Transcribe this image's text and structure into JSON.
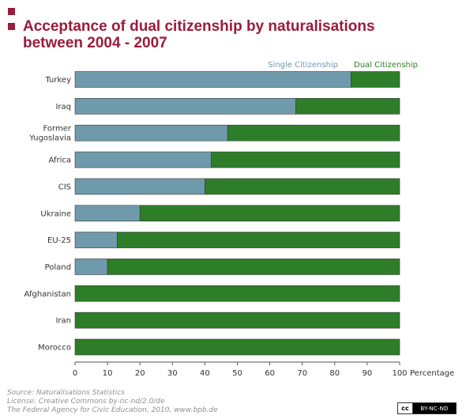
{
  "header": {
    "title_line1": "Acceptance of dual citizenship by naturalisations",
    "title_line2": "between 2004 - 2007"
  },
  "colors": {
    "accent": "#9b1b3a",
    "single": "#6f9aab",
    "dual": "#2e7d28",
    "axis": "#555555",
    "source_text": "#909090"
  },
  "chart_data": {
    "type": "bar",
    "orientation": "horizontal",
    "stacked": true,
    "categories": [
      "Turkey",
      "Iraq",
      "Former Yugoslavia",
      "Africa",
      "CIS",
      "Ukraine",
      "EU-25",
      "Poland",
      "Afghanistan",
      "Iran",
      "Morocco"
    ],
    "category_labels": [
      [
        "Turkey"
      ],
      [
        "Iraq"
      ],
      [
        "Former",
        "Yugoslavia"
      ],
      [
        "Africa"
      ],
      [
        "CIS"
      ],
      [
        "Ukraine"
      ],
      [
        "EU-25"
      ],
      [
        "Poland"
      ],
      [
        "Afghanistan"
      ],
      [
        "Iran"
      ],
      [
        "Morocco"
      ]
    ],
    "series": [
      {
        "name": "Single Citizenship",
        "values": [
          85,
          68,
          47,
          42,
          40,
          20,
          13,
          10,
          0,
          0,
          0
        ]
      },
      {
        "name": "Dual Citizenship",
        "values": [
          15,
          32,
          53,
          58,
          60,
          80,
          87,
          90,
          100,
          100,
          100
        ]
      }
    ],
    "xlabel": "Percentage",
    "xlim": [
      0,
      100
    ],
    "xticks": [
      0,
      10,
      20,
      30,
      40,
      50,
      60,
      70,
      80,
      90,
      100
    ],
    "grid": false,
    "legend_position": "top-right"
  },
  "footer": {
    "source": "Source: Naturalisations Statistics",
    "license": "License: Creative Commons by-nc-nd/2.0/de",
    "publisher": "The Federal Agency for Civic Education, 2010, www.bpb.de"
  },
  "badge": {
    "cc": "cc",
    "label": "BY-NC-ND"
  }
}
